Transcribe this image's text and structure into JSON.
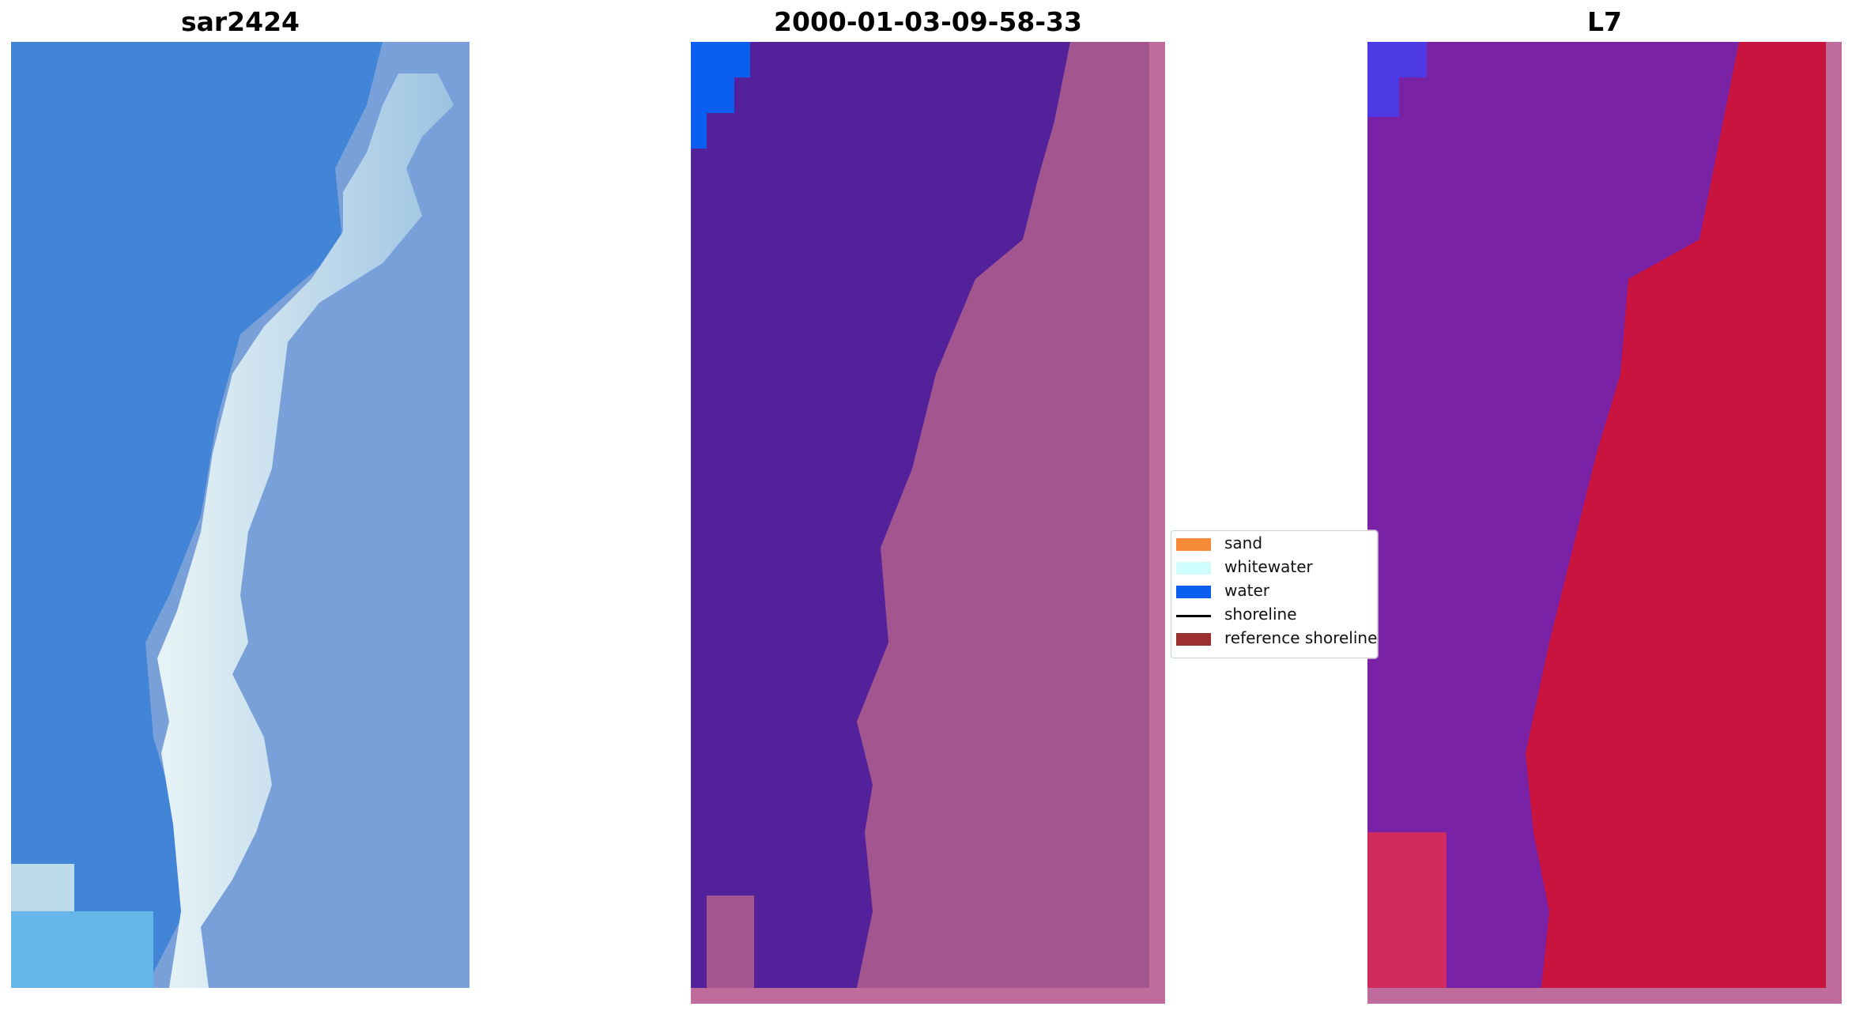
{
  "panels": {
    "left": {
      "title": "sar2424"
    },
    "middle": {
      "title": "2000-01-03-09-58-33"
    },
    "right": {
      "title": "L7"
    }
  },
  "legend": {
    "items": [
      {
        "label": "sand",
        "color": "#f78a37",
        "kind": "patch"
      },
      {
        "label": "whitewater",
        "color": "#cffdfd",
        "kind": "patch"
      },
      {
        "label": "water",
        "color": "#0a5ef0",
        "kind": "patch"
      },
      {
        "label": "shoreline",
        "color": "#000000",
        "kind": "line"
      },
      {
        "label": "reference shoreline",
        "color": "#9c2f2f",
        "kind": "patch"
      }
    ]
  },
  "colors": {
    "sea_blue": "#3f82d6",
    "surf_white": "#dceef0",
    "class_water": "#53219a",
    "class_land": "#a2558f",
    "false_color_land": "#c8143f",
    "false_color_water": "#7a22a6",
    "border_pink": "#bf6b9b"
  }
}
